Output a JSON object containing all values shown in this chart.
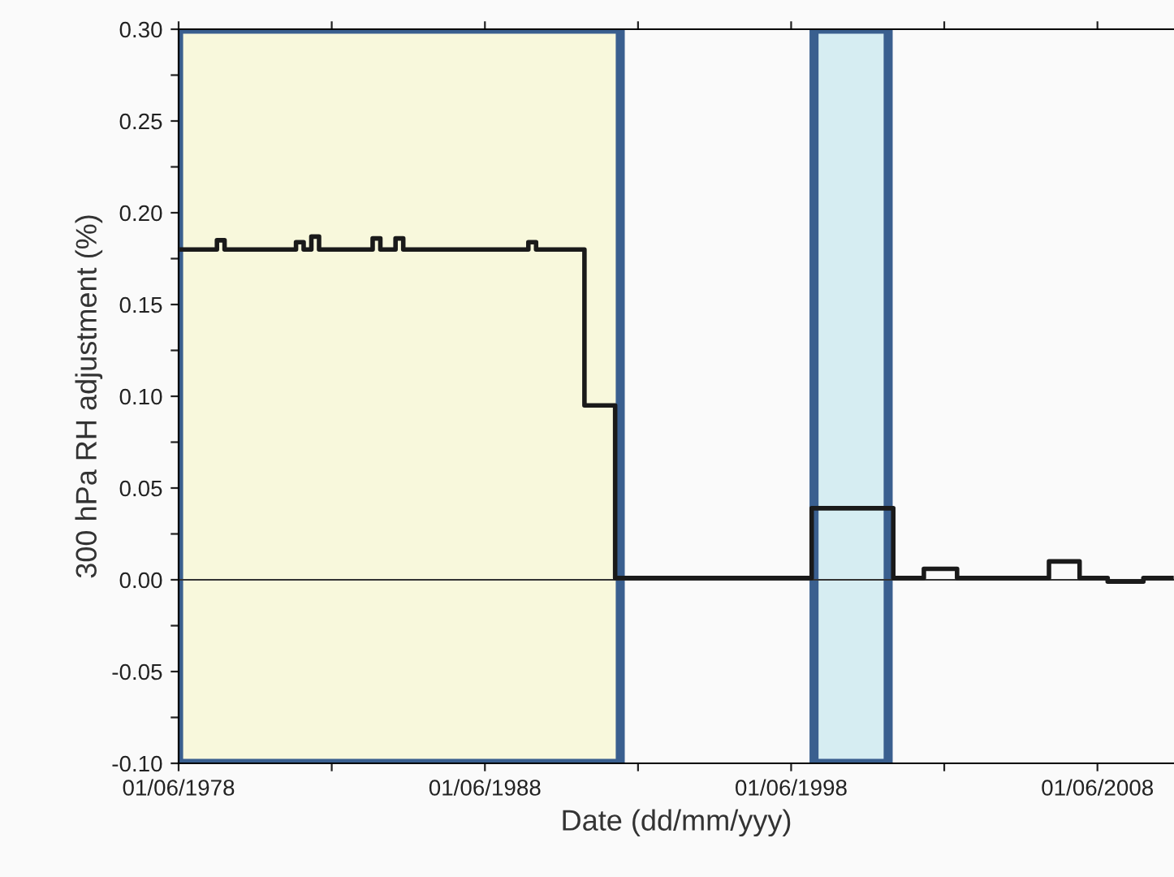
{
  "chart_data": {
    "type": "step",
    "xlabel": "Date (dd/mm/yyy)",
    "ylabel": "300 hPa RH adjustment (%)",
    "x": [
      "1978-06",
      "1979-09",
      "1979-12",
      "1982-04",
      "1982-07",
      "1982-10",
      "1983-01",
      "1984-10",
      "1985-01",
      "1985-07",
      "1985-10",
      "1989-11",
      "1990-02",
      "1991-09",
      "1992-09",
      "1999-02",
      "2001-10",
      "2002-10",
      "2003-11",
      "2006-11",
      "2007-11",
      "2008-10",
      "2009-12",
      "2010-11"
    ],
    "values": [
      0.18,
      0.185,
      0.18,
      0.184,
      0.18,
      0.187,
      0.18,
      0.186,
      0.18,
      0.186,
      0.18,
      0.184,
      0.18,
      0.095,
      0.001,
      0.039,
      0.001,
      0.006,
      0.001,
      0.01,
      0.001,
      -0.001,
      0.001,
      0.001
    ],
    "color": "#1a1a1a",
    "xlim": [
      "1978-06-01",
      "2010-12-01"
    ],
    "xticks": [
      {
        "value": "1978-06-01",
        "label": "01/06/1978"
      },
      {
        "value": "1983-06-01",
        "label": null
      },
      {
        "value": "1988-06-01",
        "label": "01/06/1988"
      },
      {
        "value": "1993-06-01",
        "label": null
      },
      {
        "value": "1998-06-01",
        "label": "01/06/1998"
      },
      {
        "value": "2003-06-01",
        "label": null
      },
      {
        "value": "2008-06-01",
        "label": "01/06/2008"
      }
    ],
    "ylim": [
      -0.1,
      0.3
    ],
    "yticks": [
      {
        "value": -0.1,
        "label": "-0.10"
      },
      {
        "value": -0.075,
        "label": null
      },
      {
        "value": -0.05,
        "label": "-0.05"
      },
      {
        "value": -0.025,
        "label": null
      },
      {
        "value": 0,
        "label": "0.00"
      },
      {
        "value": 0.025,
        "label": null
      },
      {
        "value": 0.05,
        "label": "0.05"
      },
      {
        "value": 0.075,
        "label": null
      },
      {
        "value": 0.1,
        "label": "0.10"
      },
      {
        "value": 0.125,
        "label": null
      },
      {
        "value": 0.15,
        "label": "0.15"
      },
      {
        "value": 0.175,
        "label": null
      },
      {
        "value": 0.2,
        "label": "0.20"
      },
      {
        "value": 0.225,
        "label": null
      },
      {
        "value": 0.25,
        "label": "0.25"
      },
      {
        "value": 0.275,
        "label": null
      },
      {
        "value": 0.3,
        "label": "0.30"
      }
    ],
    "ref_lines": [
      {
        "axis": "y",
        "value": 0,
        "color": "#333333"
      }
    ],
    "bands": [
      {
        "axis": "x",
        "from": "1978-06-01",
        "to": "1992-11-01",
        "color": "#f8f8dc"
      },
      {
        "axis": "x",
        "from": "1999-03-01",
        "to": "2001-08-01",
        "color": "#d6edf2"
      }
    ],
    "grid": false,
    "legend": false
  }
}
